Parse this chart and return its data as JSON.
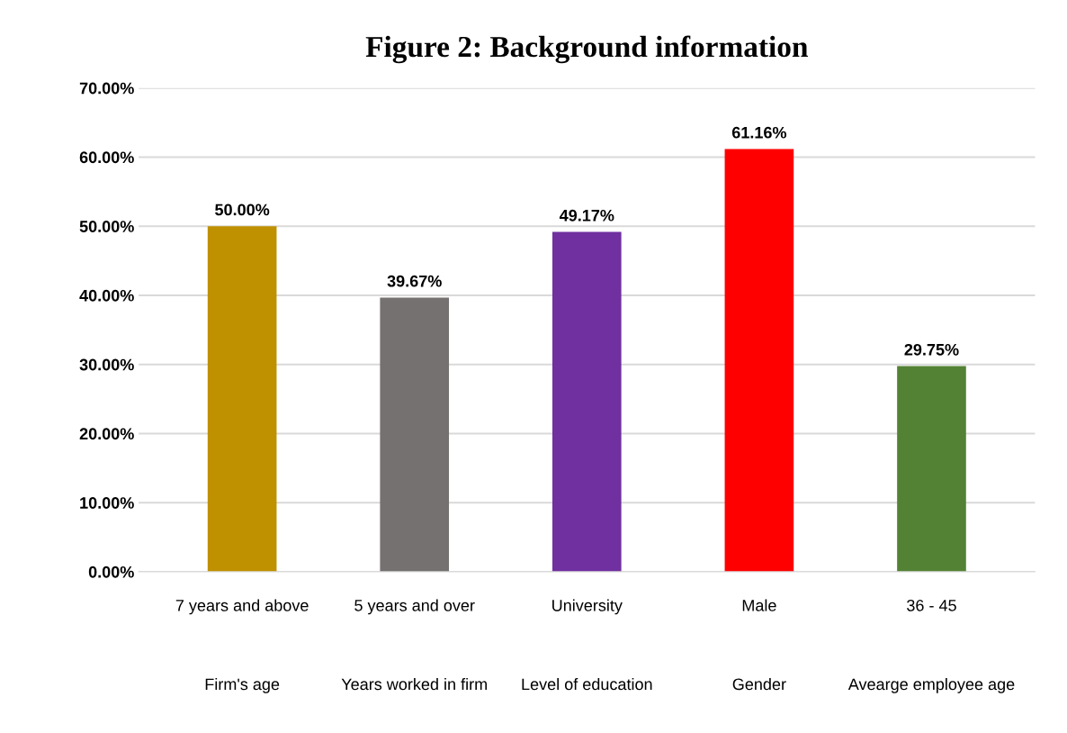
{
  "chart_data": {
    "type": "bar",
    "title": "Figure 2: Background information",
    "categories": [
      "7 years and above",
      "5 years and over",
      "University",
      "Male",
      "36 - 45"
    ],
    "values": [
      50.0,
      39.67,
      49.17,
      61.16,
      29.75
    ],
    "colors": [
      "#bf9000",
      "#767171",
      "#7030a0",
      "#ff0000",
      "#548235"
    ],
    "value_labels": [
      "50.00%",
      "39.67%",
      "49.17%",
      "61.16%",
      "29.75%"
    ],
    "ylim": [
      0,
      70
    ],
    "yticks": [
      {
        "value": 0,
        "label": "0.00%"
      },
      {
        "value": 10,
        "label": "10.00%"
      },
      {
        "value": 20,
        "label": "20.00%"
      },
      {
        "value": 30,
        "label": "30.00%"
      },
      {
        "value": 40,
        "label": "40.00%"
      },
      {
        "value": 50,
        "label": "50.00%"
      },
      {
        "value": 60,
        "label": "60.00%"
      },
      {
        "value": 70,
        "label": "70.00%"
      }
    ],
    "grid": "y",
    "annotations": [
      "Firm's age",
      "Years worked in firm",
      "Level of education",
      "Gender",
      "Avearge employee age"
    ]
  }
}
